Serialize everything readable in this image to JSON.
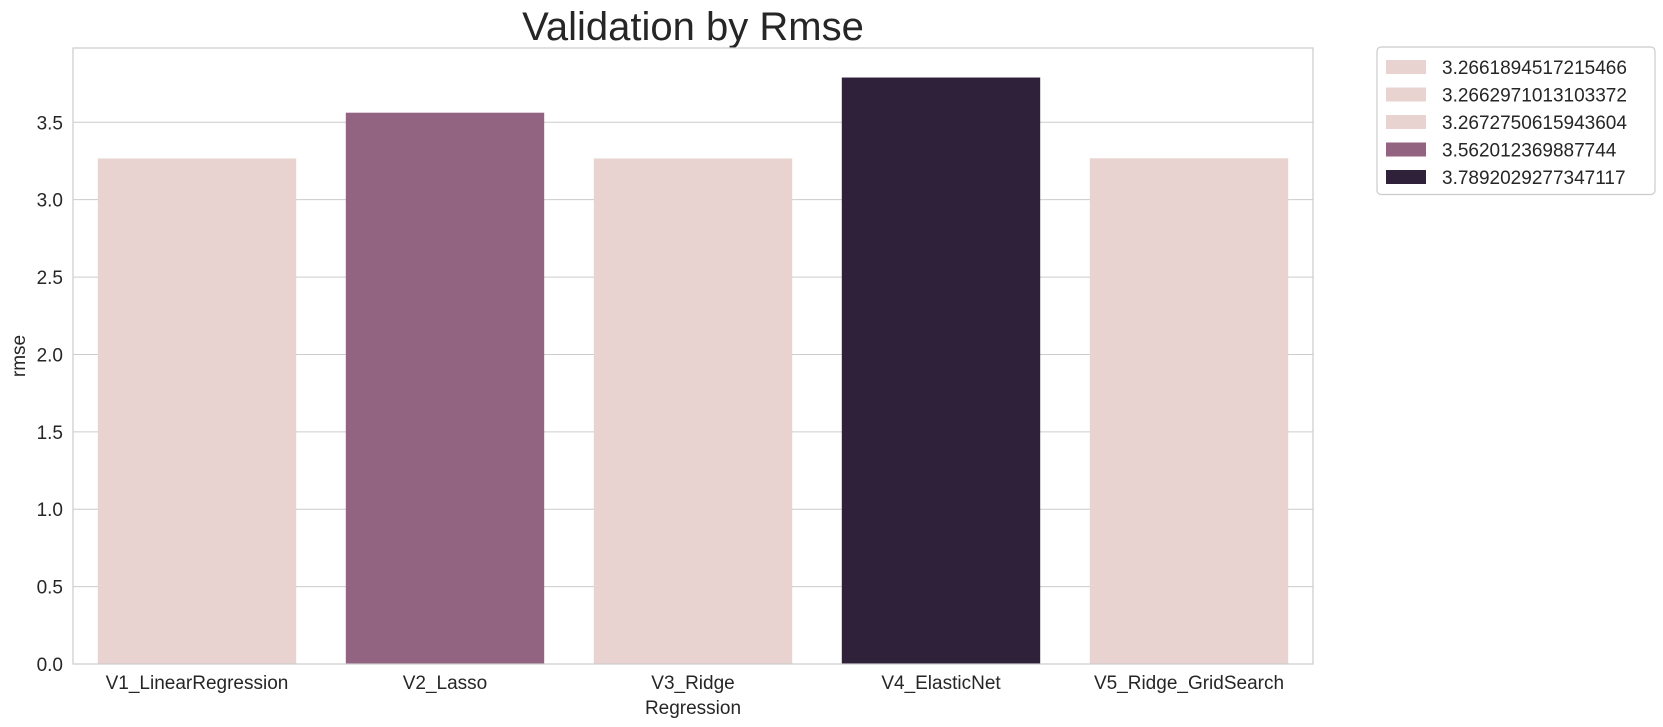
{
  "chart_data": {
    "type": "bar",
    "title": "Validation by Rmse",
    "xlabel": "Regression",
    "ylabel": "rmse",
    "categories": [
      "V1_LinearRegression",
      "V2_Lasso",
      "V3_Ridge",
      "V4_ElasticNet",
      "V5_Ridge_GridSearch"
    ],
    "values": [
      3.2661894517215466,
      3.562012369887744,
      3.2662971013103372,
      3.7892029277347117,
      3.2672750615943604
    ],
    "bar_colors": [
      "#e8d3d0",
      "#936482",
      "#e8d3d0",
      "#2f2139",
      "#e8d3d0"
    ],
    "ylim": [
      0,
      3.98
    ],
    "yticks": [
      "0.0",
      "0.5",
      "1.0",
      "1.5",
      "2.0",
      "2.5",
      "3.0",
      "3.5"
    ],
    "grid": "horizontal",
    "legend": {
      "placement": "outside-top-right",
      "entries": [
        {
          "label": "3.2661894517215466",
          "color": "#e8d3d0"
        },
        {
          "label": "3.2662971013103372",
          "color": "#e8d3d0"
        },
        {
          "label": "3.2672750615943604",
          "color": "#e8d3d0"
        },
        {
          "label": "3.562012369887744",
          "color": "#936482"
        },
        {
          "label": "3.7892029277347117",
          "color": "#2f2139"
        }
      ]
    }
  }
}
